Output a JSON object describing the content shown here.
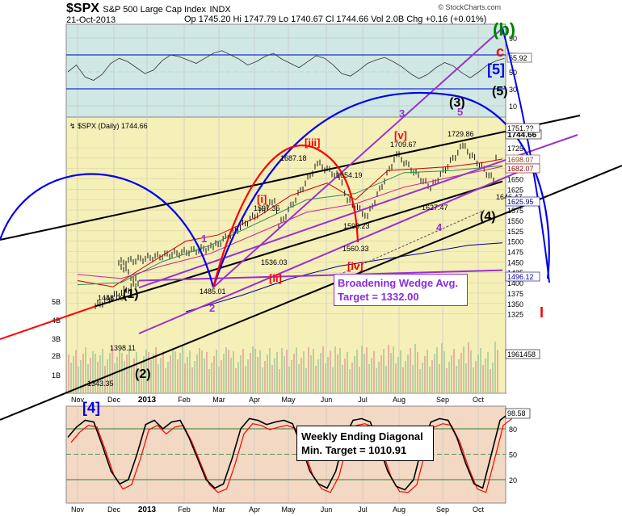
{
  "header": {
    "symbol": "$SPX",
    "name": "S&P 500 Large Cap Index",
    "exchange": "INDX",
    "date": "21-Oct-2013",
    "ohlc": "Op 1745.20  Hi 1747.79  Lo 1740.67  Cl 1744.66  Vol 2.0B  Chg +0.16 (+0.01%)",
    "brand": "© StockCharts.com",
    "legend": "$SPX (Daily) 1744.66"
  },
  "colors": {
    "rsi_bg": "#cfe8e4",
    "main_bg": "#f5efb8",
    "stoch_bg": "#f3d9c3",
    "blue": "#0000ee",
    "red": "#ff0000",
    "purple": "#9932cc",
    "black": "#000000",
    "green": "#008000"
  },
  "axes": {
    "x_labels": [
      "Nov",
      "Dec",
      "2013",
      "Feb",
      "Mar",
      "Apr",
      "May",
      "Jun",
      "Jul",
      "Aug",
      "Sep",
      "Oct"
    ],
    "rsi_ticks": [
      "90",
      "70",
      "50",
      "30",
      "10"
    ],
    "price_ticks": [
      "1725",
      "1700",
      "1675",
      "1650",
      "1625",
      "1600",
      "1575",
      "1550",
      "1525",
      "1500",
      "1475",
      "1450",
      "1425",
      "1400",
      "1375",
      "1350",
      "1325"
    ],
    "volume_ticks": [
      "5B",
      "4B",
      "3B",
      "2B",
      "1B"
    ],
    "stoch_ticks": [
      "80",
      "50",
      "20"
    ]
  },
  "right_values": {
    "rsi": "65.92",
    "last": "1744.66",
    "v1": "1751.??",
    "v2": "1698.07",
    "v3": "1682.07",
    "v4": "1625.95",
    "v5": "1496.12",
    "vol": "1961458",
    "stoch": "98.58"
  },
  "price_labels": [
    {
      "text": "1343.35"
    },
    {
      "text": "1398.11"
    },
    {
      "text": "1448.00"
    },
    {
      "text": "1485.01"
    },
    {
      "text": "1597.35"
    },
    {
      "text": "1536.03"
    },
    {
      "text": "1687.18"
    },
    {
      "text": "1654.19"
    },
    {
      "text": "1598.23"
    },
    {
      "text": "1560.33"
    },
    {
      "text": "1709.67"
    },
    {
      "text": "1627.47"
    },
    {
      "text": "1729.86"
    },
    {
      "text": "1646.47"
    }
  ],
  "wave_labels": [
    {
      "text": "(b)",
      "color": "#008000"
    },
    {
      "text": "c",
      "color": "#ff0000"
    },
    {
      "text": "[5]",
      "color": "#0000ee"
    },
    {
      "text": "(5)",
      "color": "#000000"
    },
    {
      "text": "(3)",
      "color": "#000000"
    },
    {
      "text": "5",
      "color": "#9932cc"
    },
    {
      "text": "3",
      "color": "#9932cc"
    },
    {
      "text": "[v]",
      "color": "#ff0000"
    },
    {
      "text": "[iii]",
      "color": "#ff0000"
    },
    {
      "text": "[i]",
      "color": "#ff0000"
    },
    {
      "text": "[ii]",
      "color": "#ff0000"
    },
    {
      "text": "[iv]",
      "color": "#ff0000"
    },
    {
      "text": "1",
      "color": "#9932cc"
    },
    {
      "text": "2",
      "color": "#9932cc"
    },
    {
      "text": "4",
      "color": "#9932cc"
    },
    {
      "text": "(4)",
      "color": "#000000"
    },
    {
      "text": "(1)",
      "color": "#000000"
    },
    {
      "text": "(2)",
      "color": "#000000"
    },
    {
      "text": "[4]",
      "color": "#0000ee"
    },
    {
      "text": "I",
      "color": "#ff0000"
    }
  ],
  "annotations": {
    "wedge_line1": "Broadening Wedge Avg.",
    "wedge_line2": "Target = 1332.00",
    "diag_line1": "Weekly Ending Diagonal",
    "diag_line2": "Min. Target = 1010.91"
  },
  "chart_data": {
    "type": "candlestick",
    "title": "$SPX S&P 500 Large Cap Index INDX",
    "ylim": [
      1325,
      1760
    ],
    "rsi_range": [
      0,
      100
    ],
    "stoch_range": [
      0,
      100
    ],
    "key_points": [
      {
        "date": "2012-11-16",
        "value": 1343.35
      },
      {
        "date": "2012-12-03",
        "value": 1398.11
      },
      {
        "date": "2012-12-18",
        "value": 1448.0
      },
      {
        "date": "2013-02-26",
        "value": 1485.01
      },
      {
        "date": "2013-03-14",
        "value": 1597.35
      },
      {
        "date": "2013-04-18",
        "value": 1536.03
      },
      {
        "date": "2013-05-22",
        "value": 1687.18
      },
      {
        "date": "2013-06-05",
        "value": 1654.19
      },
      {
        "date": "2013-06-13",
        "value": 1598.23
      },
      {
        "date": "2013-06-24",
        "value": 1560.33
      },
      {
        "date": "2013-08-02",
        "value": 1709.67
      },
      {
        "date": "2013-08-28",
        "value": 1627.47
      },
      {
        "date": "2013-09-19",
        "value": 1729.86
      },
      {
        "date": "2013-10-09",
        "value": 1646.47
      },
      {
        "date": "2013-10-21",
        "value": 1744.66
      }
    ],
    "series": [
      {
        "name": "$SPX (Daily)",
        "last": 1744.66
      }
    ]
  }
}
